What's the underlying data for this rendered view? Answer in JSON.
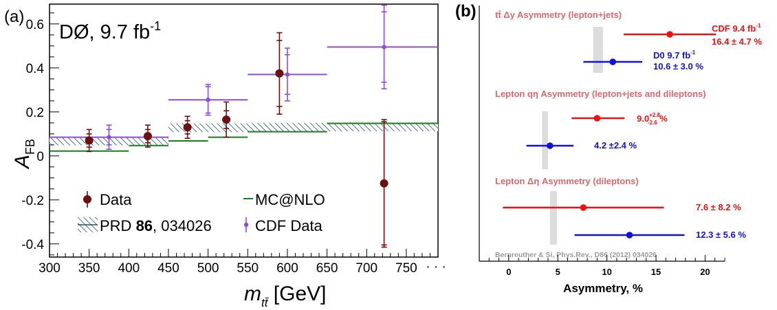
{
  "chart_data": [
    {
      "type": "scatter",
      "panel_label": "(a)",
      "experiment_label": "DØ, 9.7 fb",
      "experiment_label_sup": "-1",
      "xlabel_main": "m",
      "xlabel_sub": "tt̄",
      "xlabel_unit": "[GeV]",
      "ylabel_main": "A",
      "ylabel_sub": "FB",
      "xlim": [
        300,
        790
      ],
      "ylim": [
        -0.46,
        0.69
      ],
      "x_ticks": [
        {
          "v": 300,
          "label": "300"
        },
        {
          "v": 350,
          "label": "350"
        },
        {
          "v": 400,
          "label": "400"
        },
        {
          "v": 450,
          "label": "450"
        },
        {
          "v": 500,
          "label": "500"
        },
        {
          "v": 550,
          "label": "550"
        },
        {
          "v": 600,
          "label": "600"
        },
        {
          "v": 650,
          "label": "650"
        },
        {
          "v": 700,
          "label": "700"
        },
        {
          "v": 750,
          "label": "750"
        }
      ],
      "x_overflow_label": "· · ·",
      "y_ticks": [
        {
          "v": -0.4,
          "label": "-0.4"
        },
        {
          "v": -0.2,
          "label": "-0.2"
        },
        {
          "v": 0,
          "label": "0"
        },
        {
          "v": 0.2,
          "label": "0.2"
        },
        {
          "v": 0.4,
          "label": "0.4"
        },
        {
          "v": 0.6,
          "label": "0.6"
        }
      ],
      "series": [
        {
          "name": "Data",
          "color": "#6b0f0f",
          "points": [
            {
              "x": 350,
              "y": 0.07,
              "err_stat": 0.03,
              "err_tot": 0.05
            },
            {
              "x": 424,
              "y": 0.09,
              "err_stat": 0.03,
              "err_tot": 0.05
            },
            {
              "x": 474,
              "y": 0.13,
              "err_stat": 0.03,
              "err_tot": 0.05
            },
            {
              "x": 523,
              "y": 0.165,
              "err_stat": 0.04,
              "err_tot": 0.08
            },
            {
              "x": 590,
              "y": 0.375,
              "err_stat": 0.15,
              "err_tot": 0.185
            },
            {
              "x": 722,
              "y": -0.125,
              "err_stat": 0.28,
              "err_tot": 0.29
            }
          ]
        },
        {
          "name": "CDF Data",
          "color": "#8a4fd6",
          "points": [
            {
              "x": 375,
              "xlo": 300,
              "xhi": 450,
              "y": 0.085,
              "err_stat": 0.035,
              "err_tot": 0.055
            },
            {
              "x": 500,
              "xlo": 450,
              "xhi": 550,
              "y": 0.255,
              "err_stat": 0.06,
              "err_tot": 0.07
            },
            {
              "x": 600,
              "xlo": 550,
              "xhi": 650,
              "y": 0.37,
              "err_stat": 0.09,
              "err_tot": 0.12
            },
            {
              "x": 722,
              "xlo": 650,
              "xhi": 790,
              "y": 0.495,
              "err_stat": 0.16,
              "err_tot": 0.19
            }
          ]
        },
        {
          "name": "MC@NLO",
          "color": "#1e7a1e",
          "steps": [
            {
              "x0": 300,
              "x1": 400,
              "y": 0.022
            },
            {
              "x0": 400,
              "x1": 450,
              "y": 0.047
            },
            {
              "x0": 450,
              "x1": 500,
              "y": 0.068
            },
            {
              "x0": 500,
              "x1": 550,
              "y": 0.085
            },
            {
              "x0": 550,
              "x1": 650,
              "y": 0.11
            },
            {
              "x0": 650,
              "x1": 790,
              "y": 0.148
            }
          ]
        },
        {
          "name": "PRD 86, 034026",
          "color": "#1f5070",
          "bands": [
            {
              "x0": 300,
              "x1": 450,
              "ylo": 0.048,
              "yhi": 0.082
            },
            {
              "x0": 450,
              "x1": 550,
              "ylo": 0.108,
              "yhi": 0.148
            },
            {
              "x0": 550,
              "x1": 650,
              "ylo": 0.11,
              "yhi": 0.15
            },
            {
              "x0": 650,
              "x1": 790,
              "ylo": 0.112,
              "yhi": 0.152
            }
          ]
        }
      ],
      "legend": {
        "data": "Data",
        "mcnlo": "MC@NLO",
        "prd_pre": "PRD ",
        "prd_bold": "86",
        "prd_post": ", 034026",
        "cdf": "CDF Data"
      }
    },
    {
      "type": "scatter",
      "panel_label": "(b)",
      "xlabel": "Asymmetry, %",
      "xlim": [
        -3,
        22
      ],
      "x_ticks": [
        {
          "v": 0,
          "label": "0"
        },
        {
          "v": 5,
          "label": "5"
        },
        {
          "v": 10,
          "label": "10"
        },
        {
          "v": 15,
          "label": "15"
        },
        {
          "v": 20,
          "label": "20"
        }
      ],
      "credit": "Bernreuther & Si, Phys.Rev., D86 (2012) 034026",
      "sections": [
        {
          "title": "tt̄ Δy Asymmetry (lepton+jets)",
          "prediction_band": [
            8.6,
            9.6
          ],
          "measurements": [
            {
              "name": "CDF 9.4 fb",
              "name_sup": "-1",
              "value_text": "16.4 ± 4.7 %",
              "value": 16.4,
              "lo": 11.7,
              "hi": 21.1,
              "color": "#ee1111"
            },
            {
              "name": "D0 9.7 fb",
              "name_sup": "-1",
              "value_text": "10.6 ± 3.0 %",
              "value": 10.6,
              "lo": 7.6,
              "hi": 13.6,
              "color": "#1111dd"
            }
          ]
        },
        {
          "title": "Lepton qη Asymmetry (lepton+jets and dileptons)",
          "prediction_band": [
            3.4,
            4.0
          ],
          "measurements": [
            {
              "value_main": "9.0",
              "value_up": "+2.8",
              "value_down": "-2.6",
              "value_unit": " %",
              "value": 9.0,
              "lo": 6.4,
              "hi": 11.8,
              "color": "#ee1111"
            },
            {
              "value_text": "4.2 ±2.4 %",
              "value": 4.2,
              "lo": 1.8,
              "hi": 6.6,
              "color": "#1111dd"
            }
          ]
        },
        {
          "title": "Lepton Δη Asymmetry (dileptons)",
          "prediction_band": [
            4.2,
            4.9
          ],
          "measurements": [
            {
              "value_text": "7.6 ± 8.2 %",
              "value": 7.6,
              "lo": -0.6,
              "hi": 15.8,
              "color": "#ee1111"
            },
            {
              "value_text": "12.3 ± 5.6 %",
              "value": 12.3,
              "lo": 6.7,
              "hi": 17.9,
              "color": "#1111dd"
            }
          ]
        }
      ]
    }
  ]
}
